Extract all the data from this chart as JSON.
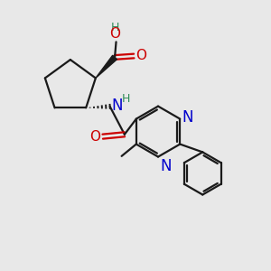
{
  "bg_color": "#e8e8e8",
  "bond_color": "#1a1a1a",
  "N_color": "#0000cc",
  "O_color": "#cc0000",
  "H_color": "#2e8b57",
  "line_width": 1.6,
  "font_size_atom": 10,
  "figsize": [
    3.0,
    3.0
  ],
  "dpi": 100,
  "xlim": [
    0,
    10
  ],
  "ylim": [
    0,
    10
  ]
}
